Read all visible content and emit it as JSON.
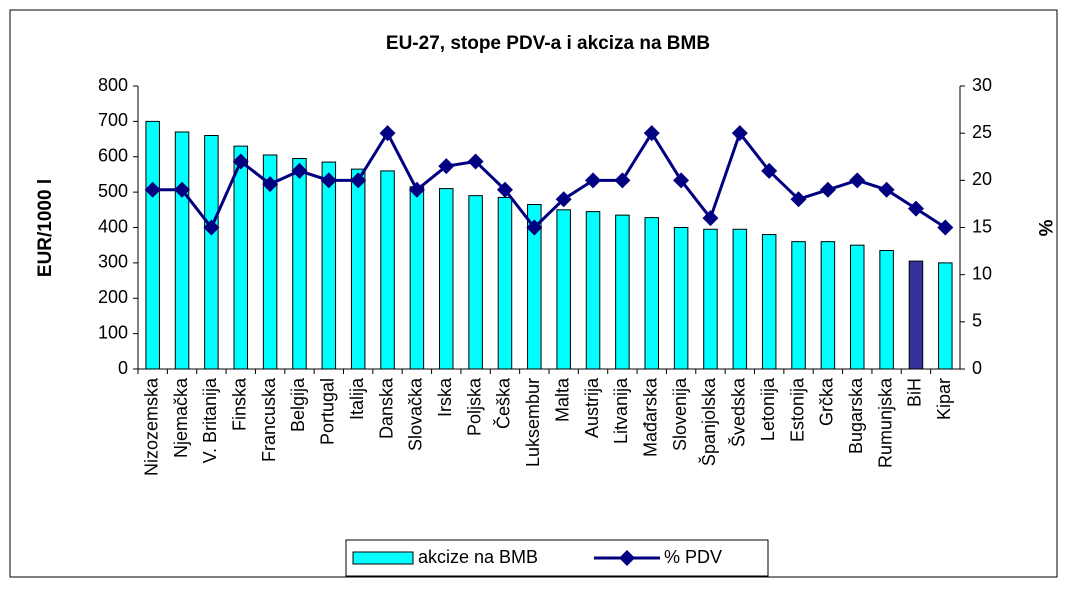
{
  "chart_data": {
    "type": "bar_line",
    "title": "EU-27, stope PDV-a i akciza na BMB",
    "y_label": "EUR/1000 l",
    "y2_label": "%",
    "categories": [
      "Nizozemska",
      "Njemačka",
      "V. Britanija",
      "Finska",
      "Francuska",
      "Belgija",
      "Portugal",
      "Italija",
      "Danska",
      "Slovačka",
      "Irska",
      "Poljska",
      "Češka",
      "Luksembur",
      "Malta",
      "Austrija",
      "Litvanija",
      "Mađarska",
      "Slovenija",
      "Španjolska",
      "Švedska",
      "Letonija",
      "Estonija",
      "Grčka",
      "Bugarska",
      "Rumunjska",
      "BiH",
      "Kipar"
    ],
    "series": [
      {
        "name": "akcize na BMB",
        "type": "bar",
        "color": "#00ffff",
        "colors": [
          "#00ffff",
          "#00ffff",
          "#00ffff",
          "#00ffff",
          "#00ffff",
          "#00ffff",
          "#00ffff",
          "#00ffff",
          "#00ffff",
          "#00ffff",
          "#00ffff",
          "#00ffff",
          "#00ffff",
          "#00ffff",
          "#00ffff",
          "#00ffff",
          "#00ffff",
          "#00ffff",
          "#00ffff",
          "#00ffff",
          "#00ffff",
          "#00ffff",
          "#00ffff",
          "#00ffff",
          "#00ffff",
          "#00ffff",
          "#333399",
          "#00ffff"
        ],
        "values": [
          700,
          670,
          660,
          630,
          605,
          595,
          585,
          565,
          560,
          515,
          510,
          490,
          485,
          465,
          450,
          445,
          435,
          428,
          400,
          395,
          395,
          380,
          360,
          360,
          350,
          335,
          305,
          300
        ]
      },
      {
        "name": "% PDV",
        "type": "line",
        "axis": "y2",
        "color": "#000080",
        "values": [
          19,
          19,
          15,
          22,
          19.6,
          21,
          20,
          20,
          25,
          19,
          21.5,
          22,
          19,
          15,
          18,
          20,
          20,
          25,
          20,
          16,
          25,
          21,
          18,
          19,
          20,
          19,
          17,
          15
        ]
      }
    ],
    "ylim": [
      0,
      800
    ],
    "yticks": [
      0,
      100,
      200,
      300,
      400,
      500,
      600,
      700,
      800
    ],
    "y2lim": [
      0,
      30
    ],
    "y2ticks": [
      0,
      5,
      10,
      15,
      20,
      25,
      30
    ],
    "grid": false,
    "legend": "bottom"
  }
}
